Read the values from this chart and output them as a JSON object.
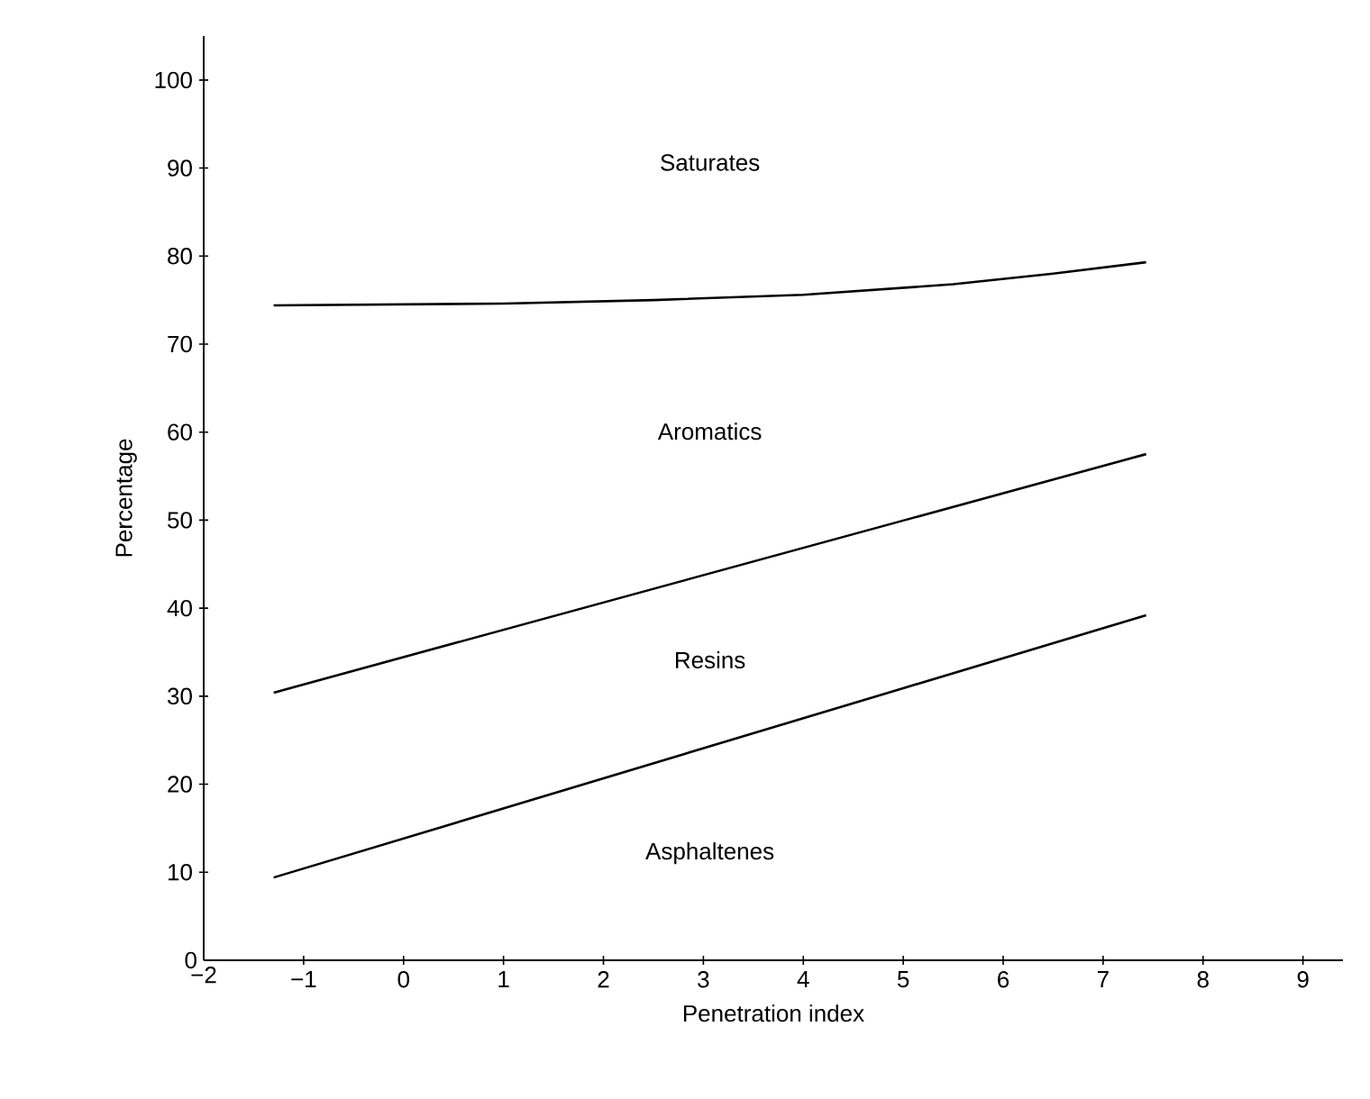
{
  "chart_data": {
    "type": "line",
    "xlabel": "Penetration index",
    "ylabel": "Percentage",
    "xlim": [
      -2,
      9.4
    ],
    "ylim": [
      0,
      105
    ],
    "xticks": [
      {
        "value": -2,
        "label": "−2"
      },
      {
        "value": -1,
        "label": "−1"
      },
      0,
      1,
      2,
      3,
      4,
      5,
      6,
      7,
      8,
      9
    ],
    "yticks": [
      0,
      10,
      20,
      30,
      40,
      50,
      60,
      70,
      80,
      90,
      100
    ],
    "marker": "none",
    "line_style": "solid",
    "series": [
      {
        "color": "#000000",
        "x": [
          -1.3,
          7.43
        ],
        "values": [
          9.4,
          39.2
        ]
      },
      {
        "color": "#000000",
        "x": [
          -1.3,
          7.43
        ],
        "values": [
          30.4,
          57.5
        ]
      },
      {
        "color": "#000000",
        "x": [
          -1.3,
          1,
          2.5,
          4,
          5.5,
          6.5,
          7.43
        ],
        "values": [
          74.4,
          74.6,
          75.0,
          75.6,
          76.8,
          78.0,
          79.3
        ]
      }
    ],
    "annotations": [
      "Saturates",
      "Aromatics",
      "Resins",
      "Asphaltenes"
    ]
  }
}
